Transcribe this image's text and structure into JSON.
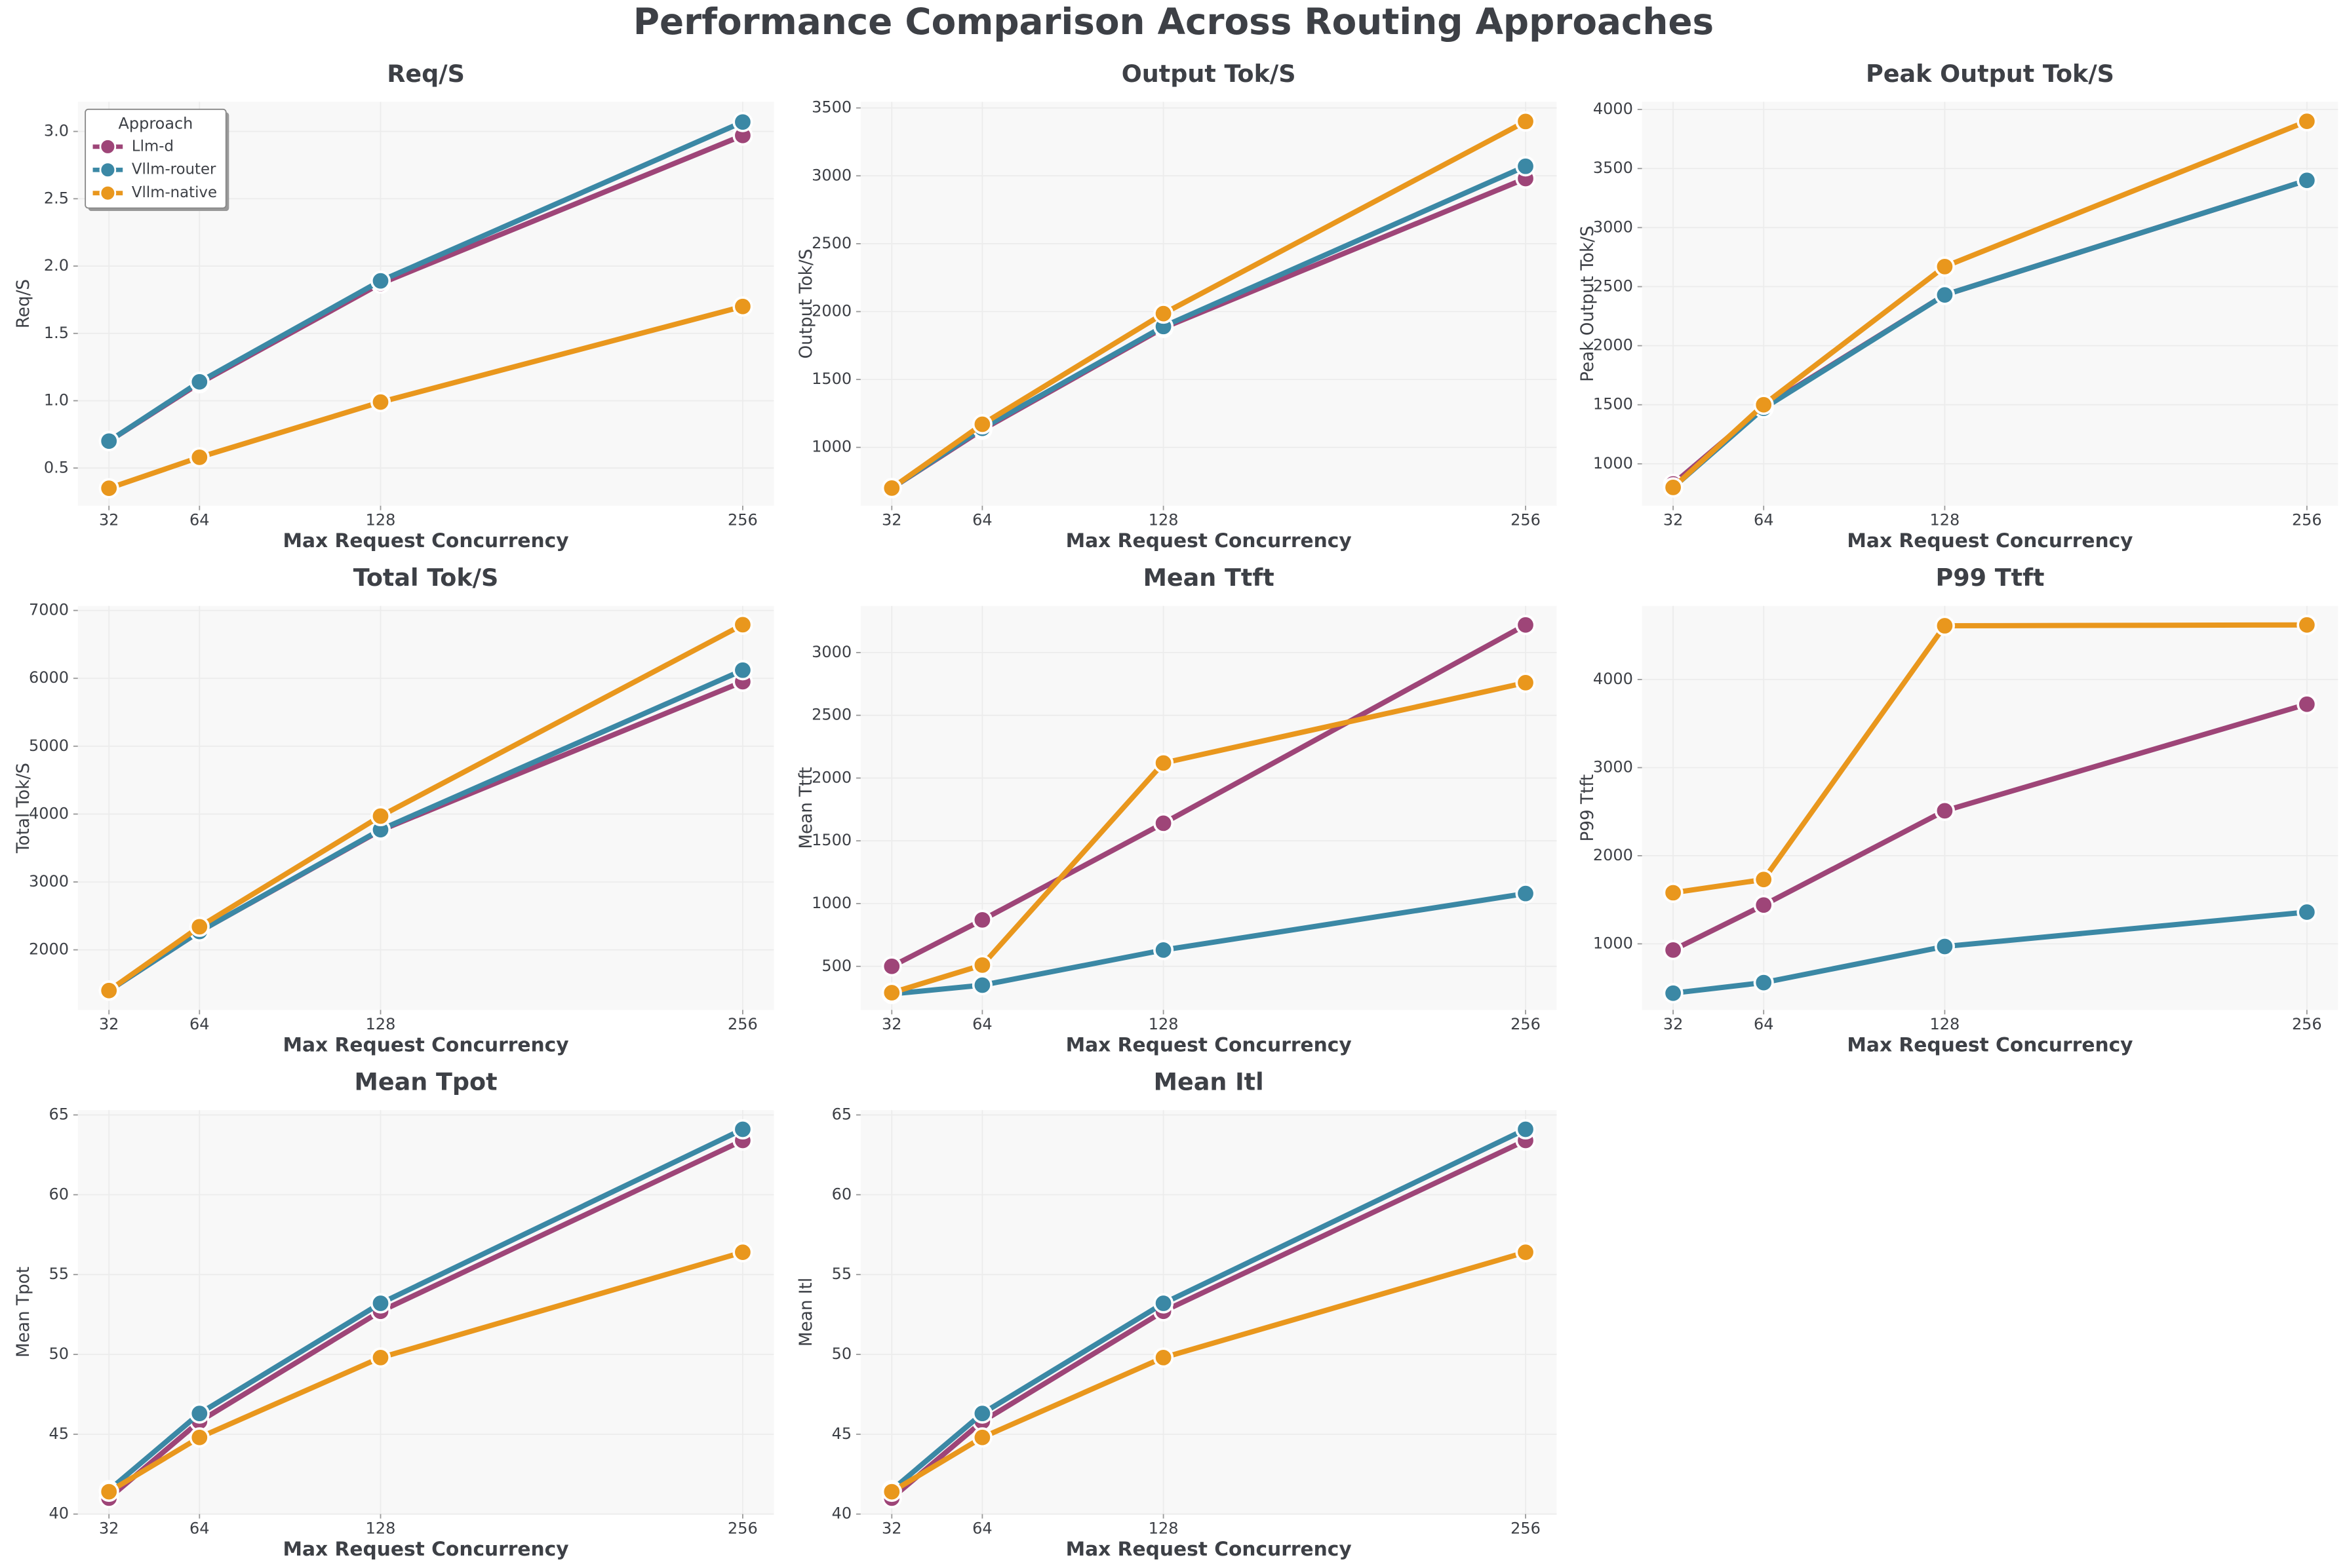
{
  "title": "Performance Comparison Across Routing Approaches",
  "chart_data": [
    {
      "type": "line",
      "title": "Req/S",
      "xlabel": "Max Request Concurrency",
      "ylabel": "Req/S",
      "x": [
        32,
        64,
        128,
        256
      ],
      "xlim": [
        21,
        267
      ],
      "xticks": [
        32,
        64,
        128,
        256
      ],
      "ylim": [
        0.22,
        3.22
      ],
      "yticks": [
        0.5,
        {
          "value": 1,
          "label": "1.0"
        },
        1.5,
        {
          "value": 2,
          "label": "2.0"
        },
        2.5,
        {
          "value": 3,
          "label": "3.0"
        }
      ],
      "grid": true,
      "legend": {
        "title": "Approach",
        "loc": "upper left"
      },
      "series": [
        {
          "name": "Llm-d",
          "color": "#9e4578",
          "values": [
            0.7,
            1.13,
            1.87,
            2.97
          ]
        },
        {
          "name": "Vllm-router",
          "color": "#3b88a5",
          "values": [
            0.7,
            1.14,
            1.89,
            3.07
          ]
        },
        {
          "name": "Vllm-native",
          "color": "#e9971d",
          "values": [
            0.35,
            0.58,
            0.99,
            1.7
          ]
        }
      ]
    },
    {
      "type": "line",
      "title": "Output Tok/S",
      "xlabel": "Max Request Concurrency",
      "ylabel": "Output Tok/S",
      "x": [
        32,
        64,
        128,
        256
      ],
      "xlim": [
        21,
        267
      ],
      "xticks": [
        32,
        64,
        128,
        256
      ],
      "ylim": [
        570,
        3545
      ],
      "yticks": [
        1000,
        1500,
        2000,
        2500,
        3000,
        3500
      ],
      "grid": true,
      "series": [
        {
          "name": "Llm-d",
          "color": "#9e4578",
          "values": [
            700,
            1130,
            1880,
            2980
          ]
        },
        {
          "name": "Vllm-router",
          "color": "#3b88a5",
          "values": [
            700,
            1140,
            1890,
            3070
          ]
        },
        {
          "name": "Vllm-native",
          "color": "#e9971d",
          "values": [
            700,
            1170,
            1985,
            3400
          ]
        }
      ]
    },
    {
      "type": "line",
      "title": "Peak Output Tok/S",
      "xlabel": "Max Request Concurrency",
      "ylabel": "Peak Output Tok/S",
      "x": [
        32,
        64,
        128,
        256
      ],
      "xlim": [
        21,
        267
      ],
      "xticks": [
        32,
        64,
        128,
        256
      ],
      "ylim": [
        645,
        4065
      ],
      "yticks": [
        1000,
        1500,
        2000,
        2500,
        3000,
        3500,
        4000
      ],
      "grid": true,
      "series": [
        {
          "name": "Llm-d",
          "color": "#9e4578",
          "values": [
            830,
            1480,
            2430,
            3400
          ]
        },
        {
          "name": "Vllm-router",
          "color": "#3b88a5",
          "values": [
            800,
            1470,
            2430,
            3400
          ]
        },
        {
          "name": "Vllm-native",
          "color": "#e9971d",
          "values": [
            800,
            1500,
            2670,
            3900
          ]
        }
      ]
    },
    {
      "type": "line",
      "title": "Total Tok/S",
      "xlabel": "Max Request Concurrency",
      "ylabel": "Total Tok/S",
      "x": [
        32,
        64,
        128,
        256
      ],
      "xlim": [
        21,
        267
      ],
      "xticks": [
        32,
        64,
        128,
        256
      ],
      "ylim": [
        1115,
        7066
      ],
      "yticks": [
        2000,
        3000,
        4000,
        5000,
        6000,
        7000
      ],
      "grid": true,
      "series": [
        {
          "name": "Llm-d",
          "color": "#9e4578",
          "values": [
            1400,
            2270,
            3760,
            5950
          ]
        },
        {
          "name": "Vllm-router",
          "color": "#3b88a5",
          "values": [
            1400,
            2270,
            3770,
            6120
          ]
        },
        {
          "name": "Vllm-native",
          "color": "#e9971d",
          "values": [
            1400,
            2340,
            3970,
            6790
          ]
        }
      ]
    },
    {
      "type": "line",
      "title": "Mean Ttft",
      "xlabel": "Max Request Concurrency",
      "ylabel": "Mean Ttft",
      "x": [
        32,
        64,
        128,
        256
      ],
      "xlim": [
        21,
        267
      ],
      "xticks": [
        32,
        64,
        128,
        256
      ],
      "ylim": [
        153,
        3371
      ],
      "yticks": [
        500,
        1000,
        1500,
        2000,
        2500,
        3000
      ],
      "grid": true,
      "series": [
        {
          "name": "Llm-d",
          "color": "#9e4578",
          "values": [
            500,
            870,
            1640,
            3220
          ]
        },
        {
          "name": "Vllm-router",
          "color": "#3b88a5",
          "values": [
            280,
            350,
            630,
            1080
          ]
        },
        {
          "name": "Vllm-native",
          "color": "#e9971d",
          "values": [
            290,
            510,
            2120,
            2760
          ]
        }
      ]
    },
    {
      "type": "line",
      "title": "P99 Ttft",
      "xlabel": "Max Request Concurrency",
      "ylabel": "P99 Ttft",
      "x": [
        32,
        64,
        128,
        256
      ],
      "xlim": [
        21,
        267
      ],
      "xticks": [
        32,
        64,
        128,
        256
      ],
      "ylim": [
        250,
        4835
      ],
      "yticks": [
        1000,
        2000,
        3000,
        4000
      ],
      "grid": true,
      "series": [
        {
          "name": "Llm-d",
          "color": "#9e4578",
          "values": [
            930,
            1440,
            2510,
            3720
          ]
        },
        {
          "name": "Vllm-router",
          "color": "#3b88a5",
          "values": [
            440,
            560,
            970,
            1360
          ]
        },
        {
          "name": "Vllm-native",
          "color": "#e9971d",
          "values": [
            1580,
            1730,
            4610,
            4620
          ]
        }
      ]
    },
    {
      "type": "line",
      "title": "Mean Tpot",
      "xlabel": "Max Request Concurrency",
      "ylabel": "Mean Tpot",
      "x": [
        32,
        64,
        128,
        256
      ],
      "xlim": [
        21,
        267
      ],
      "xticks": [
        32,
        64,
        128,
        256
      ],
      "ylim": [
        40,
        65.3
      ],
      "yticks": [
        40,
        45,
        50,
        55,
        60,
        65
      ],
      "grid": true,
      "series": [
        {
          "name": "Llm-d",
          "color": "#9e4578",
          "values": [
            41.0,
            45.8,
            52.7,
            63.4
          ]
        },
        {
          "name": "Vllm-router",
          "color": "#3b88a5",
          "values": [
            41.5,
            46.3,
            53.2,
            64.1
          ]
        },
        {
          "name": "Vllm-native",
          "color": "#e9971d",
          "values": [
            41.4,
            44.8,
            49.8,
            56.4
          ]
        }
      ]
    },
    {
      "type": "line",
      "title": "Mean Itl",
      "xlabel": "Max Request Concurrency",
      "ylabel": "Mean Itl",
      "x": [
        32,
        64,
        128,
        256
      ],
      "xlim": [
        21,
        267
      ],
      "xticks": [
        32,
        64,
        128,
        256
      ],
      "ylim": [
        40,
        65.3
      ],
      "yticks": [
        40,
        45,
        50,
        55,
        60,
        65
      ],
      "grid": true,
      "series": [
        {
          "name": "Llm-d",
          "color": "#9e4578",
          "values": [
            41.0,
            45.8,
            52.7,
            63.4
          ]
        },
        {
          "name": "Vllm-router",
          "color": "#3b88a5",
          "values": [
            41.5,
            46.3,
            53.2,
            64.1
          ]
        },
        {
          "name": "Vllm-native",
          "color": "#e9971d",
          "values": [
            41.4,
            44.8,
            49.8,
            56.4
          ]
        }
      ]
    }
  ]
}
